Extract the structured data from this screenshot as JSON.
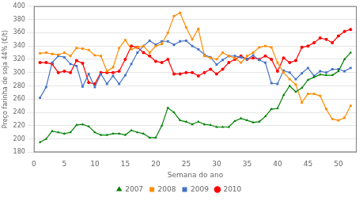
{
  "chart_data": {
    "type": "line",
    "xlabel": "Semana do ano",
    "ylabel": "Preço farinha de soja 44% (€/t)",
    "xlim": [
      0,
      53
    ],
    "ylim": [
      180,
      400
    ],
    "xticks": [
      0,
      5,
      10,
      15,
      20,
      25,
      30,
      35,
      40,
      45,
      50
    ],
    "yticks": [
      180,
      200,
      220,
      240,
      260,
      280,
      300,
      320,
      340,
      360,
      380,
      400
    ],
    "grid": "y",
    "legend": "bottom",
    "x": [
      1,
      2,
      3,
      4,
      5,
      6,
      7,
      8,
      9,
      10,
      11,
      12,
      13,
      14,
      15,
      16,
      17,
      18,
      19,
      20,
      21,
      22,
      23,
      24,
      25,
      26,
      27,
      28,
      29,
      30,
      31,
      32,
      33,
      34,
      35,
      36,
      37,
      38,
      39,
      40,
      41,
      42,
      43,
      44,
      45,
      46,
      47,
      48,
      49,
      50,
      51,
      52
    ],
    "series": [
      {
        "name": "2007",
        "color": "#008000",
        "marker": "triangle",
        "values": [
          195,
          200,
          212,
          210,
          208,
          210,
          221,
          222,
          219,
          210,
          206,
          206,
          208,
          208,
          206,
          213,
          210,
          208,
          202,
          202,
          220,
          247,
          240,
          228,
          226,
          222,
          226,
          222,
          221,
          218,
          218,
          218,
          227,
          231,
          228,
          225,
          226,
          234,
          245,
          246,
          266,
          280,
          271,
          277,
          289,
          293,
          297,
          296,
          296,
          302,
          320,
          330
        ]
      },
      {
        "name": "2008",
        "color": "#FF8C00",
        "marker": "square",
        "values": [
          329,
          330,
          328,
          327,
          330,
          325,
          337,
          336,
          334,
          326,
          325,
          302,
          308,
          337,
          349,
          335,
          338,
          340,
          330,
          340,
          343,
          360,
          385,
          390,
          368,
          350,
          366,
          325,
          322,
          320,
          330,
          325,
          322,
          315,
          325,
          330,
          338,
          340,
          338,
          315,
          300,
          290,
          282,
          255,
          268,
          268,
          265,
          245,
          230,
          228,
          232,
          250
        ]
      },
      {
        "name": "2009",
        "color": "#4472C4",
        "marker": "square",
        "values": [
          262,
          278,
          315,
          325,
          323,
          313,
          310,
          279,
          298,
          278,
          298,
          283,
          295,
          283,
          296,
          313,
          330,
          340,
          348,
          342,
          347,
          347,
          342,
          347,
          348,
          340,
          335,
          327,
          323,
          312,
          319,
          325,
          325,
          323,
          320,
          326,
          319,
          315,
          284,
          283,
          303,
          300,
          290,
          299,
          307,
          295,
          302,
          300,
          305,
          305,
          302,
          307
        ]
      },
      {
        "name": "2010",
        "color": "#FF0000",
        "marker": "circle",
        "values": [
          315,
          315,
          313,
          300,
          302,
          300,
          318,
          314,
          285,
          283,
          300,
          300,
          300,
          302,
          320,
          340,
          338,
          330,
          325,
          317,
          315,
          320,
          298,
          298,
          300,
          300,
          295,
          300,
          305,
          298,
          305,
          315,
          320,
          325,
          320,
          322,
          320,
          325,
          320,
          302,
          322,
          315,
          318,
          338,
          340,
          345,
          352,
          350,
          345,
          355,
          362,
          365
        ]
      }
    ]
  }
}
